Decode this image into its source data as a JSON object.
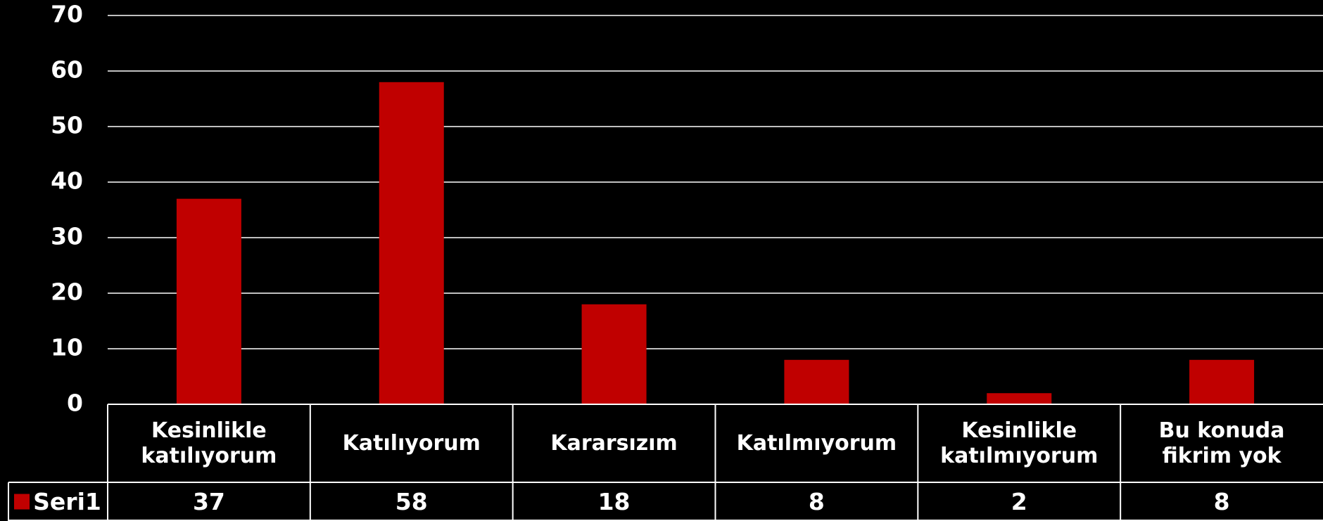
{
  "chart_data": {
    "type": "bar",
    "categories": [
      "Kesinlikle katılıyorum",
      "Katılıyorum",
      "Kararsızım",
      "Katılmıyorum",
      "Kesinlikle katılmıyorum",
      "Bu konuda fikrim yok"
    ],
    "series": [
      {
        "name": "Seri1",
        "color": "#c00000",
        "values": [
          37,
          58,
          18,
          8,
          2,
          8
        ]
      }
    ],
    "ylim": [
      0,
      70
    ],
    "yticks": [
      0,
      10,
      20,
      30,
      40,
      50,
      60,
      70
    ],
    "grid": true
  }
}
